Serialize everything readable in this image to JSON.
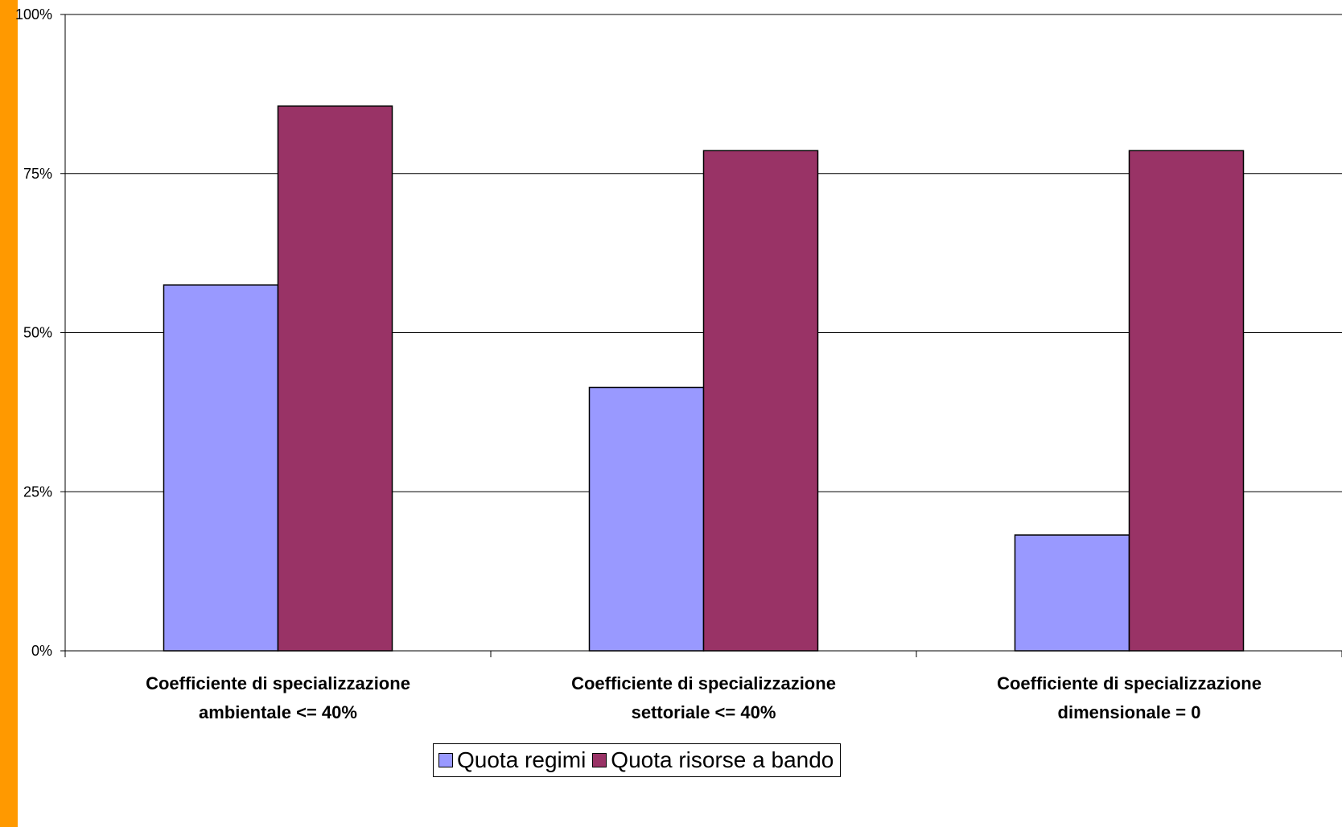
{
  "colors": {
    "accent": "#FF9900",
    "series_1": "#9999FF",
    "series_2": "#993366"
  },
  "chart_data": {
    "type": "bar",
    "categories": [
      [
        "Coefficiente di specializzazione",
        "ambientale <= 40%"
      ],
      [
        "Coefficiente di specializzazione",
        "settoriale <= 40%"
      ],
      [
        "Coefficiente di specializzazione",
        "dimensionale  = 0"
      ]
    ],
    "series": [
      {
        "name": "Quota regimi",
        "values": [
          57.5,
          41.4,
          18.2
        ]
      },
      {
        "name": "Quota risorse a bando",
        "values": [
          85.6,
          78.6,
          78.6
        ]
      }
    ],
    "yticks": [
      "0%",
      "25%",
      "50%",
      "75%",
      "100%"
    ],
    "ylim": [
      0,
      100
    ],
    "grid": true,
    "legend_position": "bottom"
  }
}
